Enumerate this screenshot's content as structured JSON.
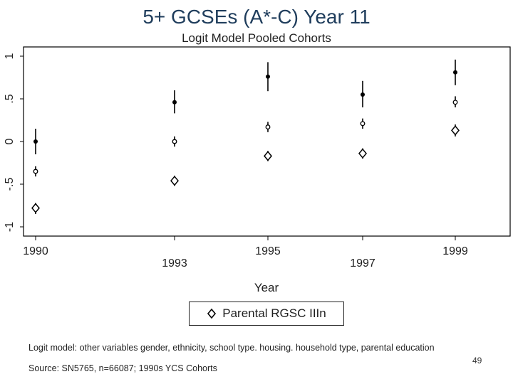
{
  "chart_data": {
    "type": "scatter",
    "title": "5+ GCSEs (A*-C) Year 11",
    "subtitle": "Logit Model Pooled Cohorts",
    "xlabel": "Year",
    "ylabel": "",
    "x_tick_labels": [
      "1990",
      "1993",
      "1995",
      "1997",
      "1999"
    ],
    "y_tick_labels": [
      "-1",
      "-.5",
      "0",
      ".5",
      "1"
    ],
    "y_ticks": [
      -1,
      -0.5,
      0,
      0.5,
      1
    ],
    "x_range": [
      1990,
      1999
    ],
    "ylim": [
      -1,
      1
    ],
    "grid": false,
    "legend_position": "bottom",
    "series": [
      {
        "marker": "dot",
        "points": [
          {
            "x": 1990,
            "y": 0.0,
            "lo": -0.15,
            "hi": 0.15
          },
          {
            "x": 1993,
            "y": 0.46,
            "lo": 0.33,
            "hi": 0.6
          },
          {
            "x": 1995,
            "y": 0.76,
            "lo": 0.59,
            "hi": 0.93
          },
          {
            "x": 1997,
            "y": 0.55,
            "lo": 0.4,
            "hi": 0.71
          },
          {
            "x": 1999,
            "y": 0.81,
            "lo": 0.66,
            "hi": 0.96
          }
        ]
      },
      {
        "marker": "small-circle",
        "points": [
          {
            "x": 1990,
            "y": -0.35,
            "lo": -0.41,
            "hi": -0.29
          },
          {
            "x": 1993,
            "y": 0.0,
            "lo": -0.06,
            "hi": 0.06
          },
          {
            "x": 1995,
            "y": 0.17,
            "lo": 0.11,
            "hi": 0.23
          },
          {
            "x": 1997,
            "y": 0.21,
            "lo": 0.15,
            "hi": 0.27
          },
          {
            "x": 1999,
            "y": 0.46,
            "lo": 0.4,
            "hi": 0.53
          }
        ]
      },
      {
        "name": "Parental RGSC IIIn",
        "marker": "diamond",
        "points": [
          {
            "x": 1990,
            "y": -0.78,
            "lo": -0.85,
            "hi": -0.72
          },
          {
            "x": 1993,
            "y": -0.46,
            "lo": -0.52,
            "hi": -0.4
          },
          {
            "x": 1995,
            "y": -0.17,
            "lo": -0.23,
            "hi": -0.11
          },
          {
            "x": 1997,
            "y": -0.14,
            "lo": -0.2,
            "hi": -0.08
          },
          {
            "x": 1999,
            "y": 0.13,
            "lo": 0.06,
            "hi": 0.2
          }
        ]
      }
    ]
  },
  "legend": {
    "label": "Parental RGSC IIIn"
  },
  "footnotes": {
    "line1": "Logit model: other variables gender, ethnicity, school type. housing. household type, parental education",
    "line2": "Source: SN5765, n=66087; 1990s YCS Cohorts"
  },
  "page_number": "49"
}
